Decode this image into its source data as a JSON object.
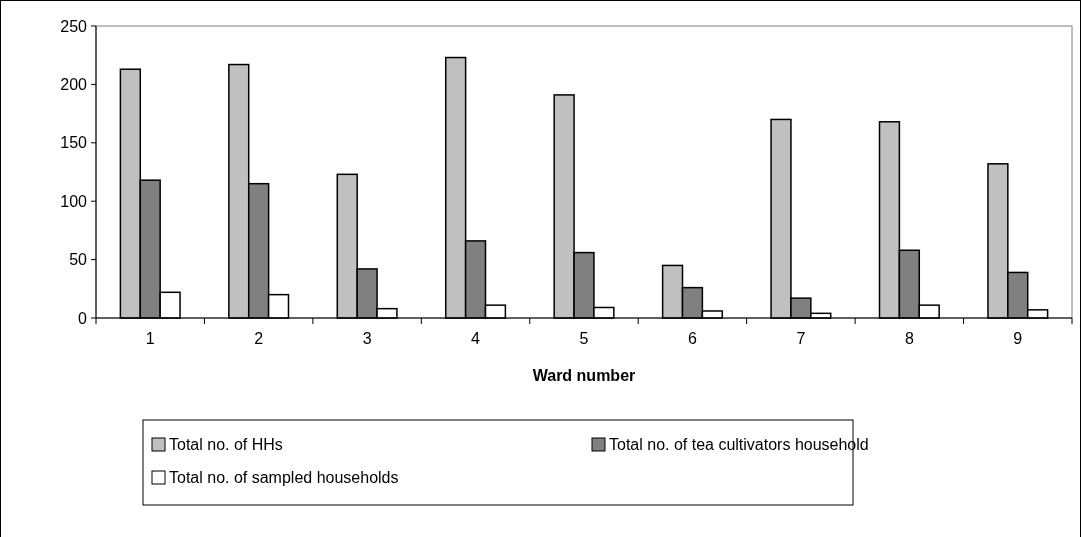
{
  "chart_data": {
    "type": "bar",
    "xlabel": "Ward number",
    "categories": [
      "1",
      "2",
      "3",
      "4",
      "5",
      "6",
      "7",
      "8",
      "9"
    ],
    "series": [
      {
        "name": "Total no. of HHs",
        "color": "#c0c0c0",
        "values": [
          213,
          217,
          123,
          223,
          191,
          45,
          170,
          168,
          132
        ]
      },
      {
        "name": "Total no. of tea cultivators household",
        "color": "#808080",
        "values": [
          118,
          115,
          42,
          66,
          56,
          26,
          17,
          58,
          39
        ]
      },
      {
        "name": "Total no. of sampled households",
        "color": "#ffffff",
        "values": [
          22,
          20,
          8,
          11,
          9,
          6,
          4,
          11,
          7
        ]
      }
    ],
    "ylim": [
      0,
      250
    ],
    "yticks": [
      0,
      50,
      100,
      150,
      200,
      250
    ],
    "grid": false,
    "legend": "bottom"
  }
}
